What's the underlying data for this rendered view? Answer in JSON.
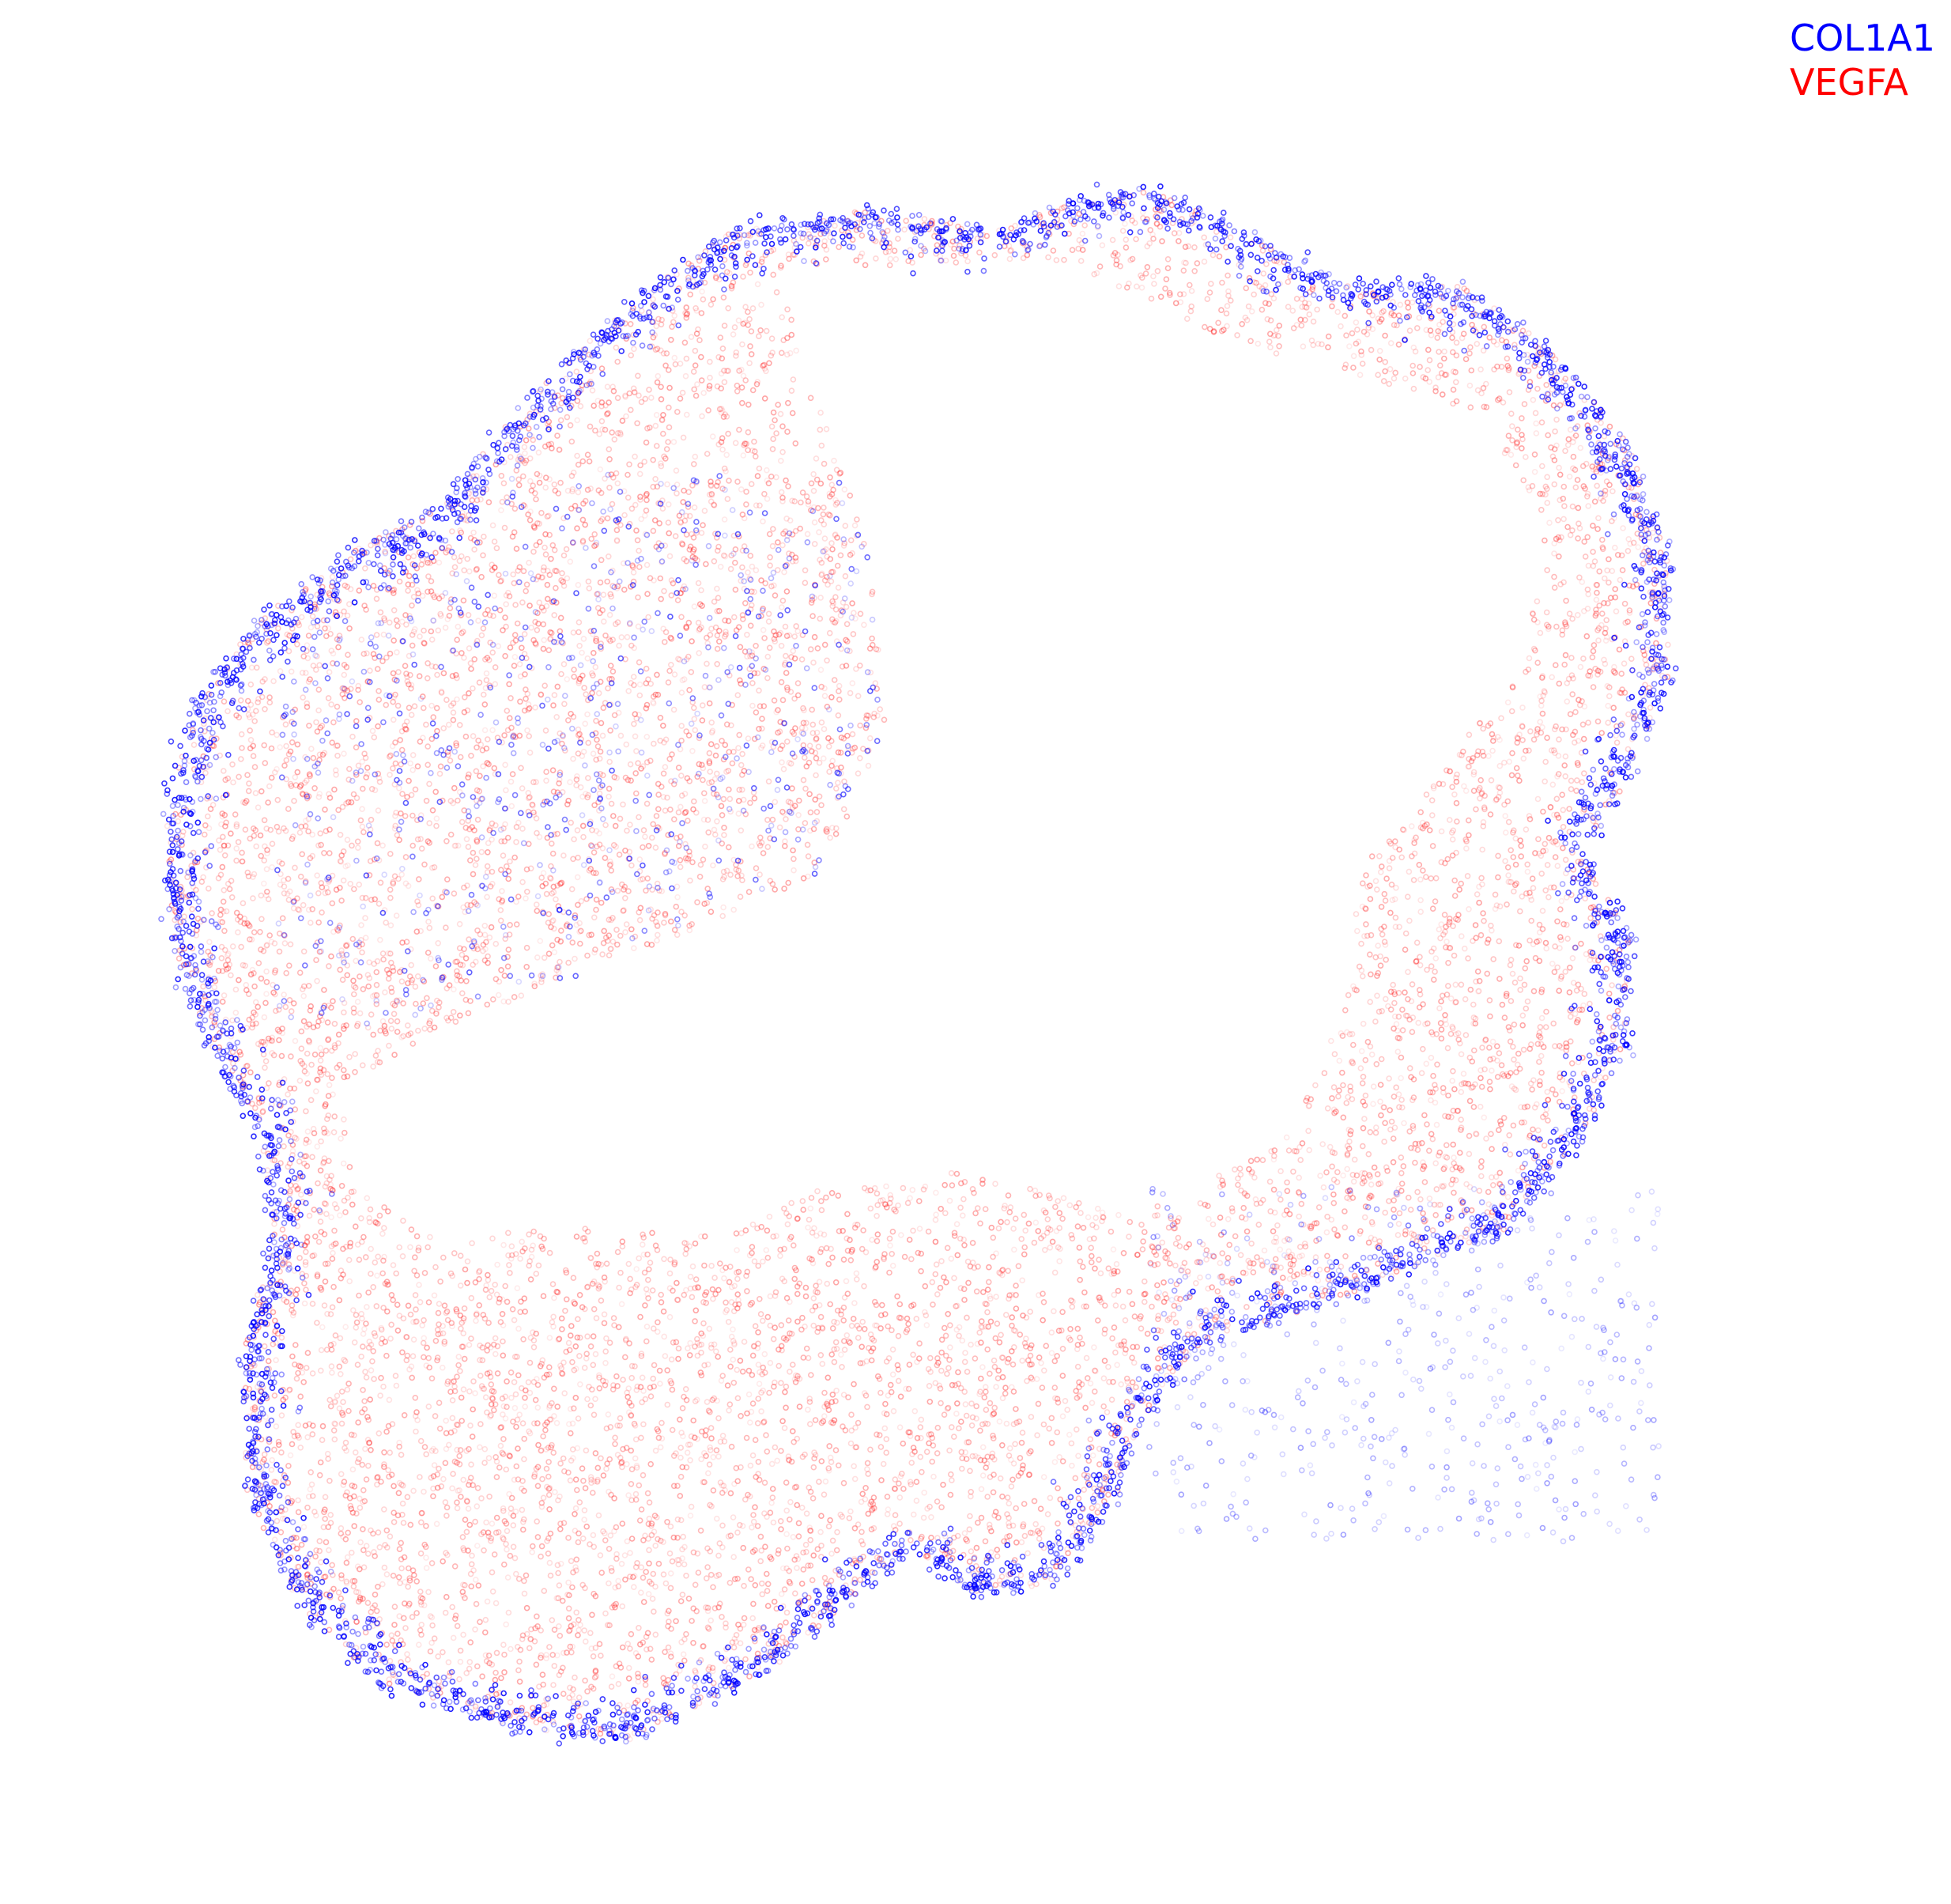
{
  "chart_data": {
    "type": "scatter",
    "title": "",
    "xlabel": "",
    "ylabel": "",
    "axes_visible": false,
    "grid": false,
    "legend_placement": "top-right",
    "series": [
      {
        "name": "COL1A1",
        "color": "#0000ff"
      },
      {
        "name": "VEGFA",
        "color": "#ff0000"
      }
    ]
  }
}
